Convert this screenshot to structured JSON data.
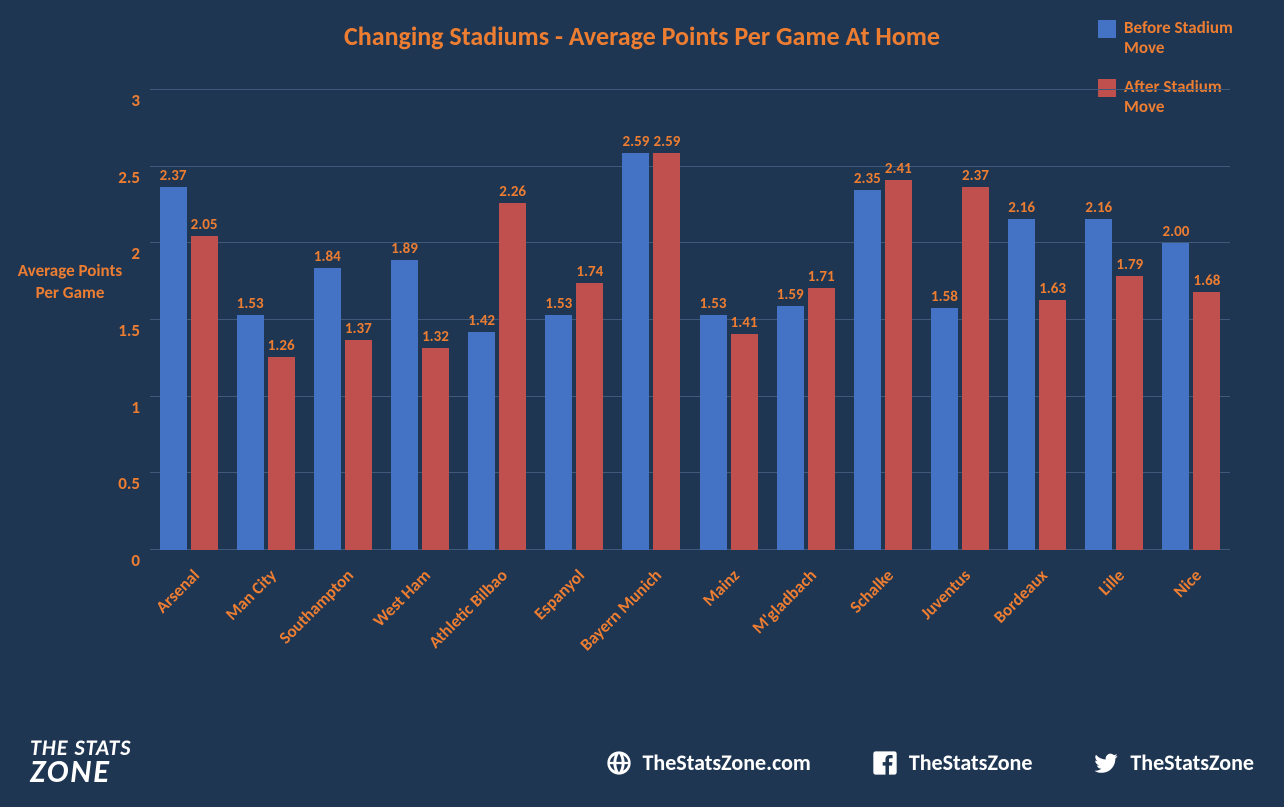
{
  "chart": {
    "title": "Changing Stadiums - Average Points Per Game At Home",
    "title_color": "#ed7d31",
    "title_fontsize": 26,
    "background_color": "#1f3653",
    "grid_color": "#40597a",
    "axis_label_color": "#ed7d31",
    "axis_label_fontsize": 17,
    "y_axis_title": "Average Points Per Game",
    "ylim_max": 3,
    "yticks": [
      0,
      0.5,
      1,
      1.5,
      2,
      2.5,
      3
    ],
    "legend": {
      "series1": {
        "label": "Before Stadium Move",
        "color": "#4472c4"
      },
      "series2": {
        "label": "After Stadium Move",
        "color": "#c0504d"
      }
    },
    "bar_label_fontsize": 15,
    "categories": [
      "Arsenal",
      "Man City",
      "Southampton",
      "West Ham",
      "Athletic Bilbao",
      "Espanyol",
      "Bayern Munich",
      "Mainz",
      "M'gladbach",
      "Schalke",
      "Juventus",
      "Bordeaux",
      "Lille",
      "Nice"
    ],
    "before": [
      2.37,
      1.53,
      1.84,
      1.89,
      1.42,
      1.53,
      2.59,
      1.53,
      1.59,
      2.35,
      1.58,
      2.16,
      2.16,
      2.0
    ],
    "after": [
      2.05,
      1.26,
      1.37,
      1.32,
      2.26,
      1.74,
      2.59,
      1.41,
      1.71,
      2.41,
      2.37,
      1.63,
      1.79,
      1.68
    ],
    "before_labels": [
      "2.37",
      "1.53",
      "1.84",
      "1.89",
      "1.42",
      "1.53",
      "2.59",
      "1.53",
      "1.59",
      "2.35",
      "1.58",
      "2.16",
      "2.16",
      "2.00"
    ],
    "after_labels": [
      "2.05",
      "1.26",
      "1.37",
      "1.32",
      "2.26",
      "1.74",
      "2.59",
      "1.41",
      "1.71",
      "2.41",
      "2.37",
      "1.63",
      "1.79",
      "1.68"
    ]
  },
  "footer": {
    "logo_line1": "THE STATS",
    "logo_line2": "ZONE",
    "web_label": "TheStatsZone.com",
    "fb_label": "TheStatsZone",
    "tw_label": "TheStatsZone",
    "text_color": "#ffffff",
    "fontsize": 22
  }
}
